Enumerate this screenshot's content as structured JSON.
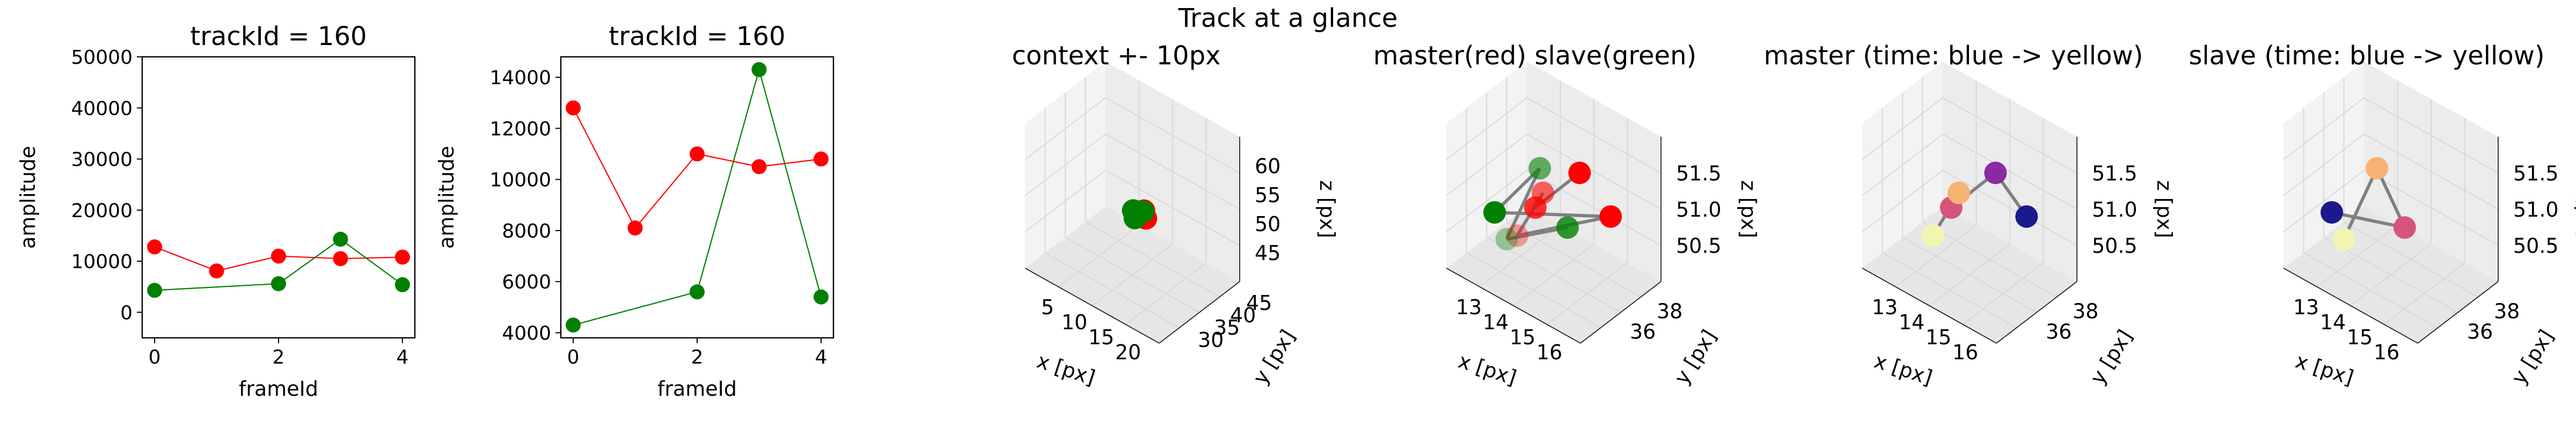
{
  "figure": {
    "suptitle": "Track at a glance"
  },
  "colors": {
    "master": "#ff0000",
    "slave": "#008000",
    "trajectory": "#808080",
    "pane": "#f2f2f2",
    "grid": "#d8d8d8"
  },
  "chart_data": [
    {
      "type": "line",
      "title": "trackId = 160",
      "xlabel": "frameId",
      "ylabel": "amplitude",
      "xlim": [
        -0.2,
        4.2
      ],
      "ylim": [
        -5000,
        50000
      ],
      "xticks": [
        0,
        2,
        4
      ],
      "yticks": [
        0,
        10000,
        20000,
        30000,
        40000,
        50000
      ],
      "series": [
        {
          "color": "#ff0000",
          "x": [
            0,
            1,
            2,
            3,
            4
          ],
          "y": [
            12800,
            8100,
            11000,
            10500,
            10800
          ]
        },
        {
          "color": "#008000",
          "x": [
            0,
            2,
            3,
            4
          ],
          "y": [
            4300,
            5600,
            14300,
            5400
          ]
        }
      ]
    },
    {
      "type": "line",
      "title": "trackId = 160",
      "xlabel": "frameId",
      "ylabel": "amplitude",
      "xlim": [
        -0.2,
        4.2
      ],
      "ylim": [
        3800,
        14800
      ],
      "xticks": [
        0,
        2,
        4
      ],
      "yticks": [
        4000,
        6000,
        8000,
        10000,
        12000,
        14000
      ],
      "series": [
        {
          "color": "#ff0000",
          "x": [
            0,
            1,
            2,
            3,
            4
          ],
          "y": [
            12800,
            8100,
            11000,
            10500,
            10800
          ]
        },
        {
          "color": "#008000",
          "x": [
            0,
            2,
            3,
            4
          ],
          "y": [
            4300,
            5600,
            14300,
            5400
          ]
        }
      ]
    },
    {
      "type": "scatter",
      "title": "context +- 10px",
      "xlabel": "x [px]",
      "ylabel": "y [px]",
      "zlabel": "z [px]",
      "xticks": [
        "5",
        "10",
        "15",
        "20"
      ],
      "yticks": [
        "30",
        "35",
        "40",
        "45"
      ],
      "zticks": [
        "45",
        "50",
        "55",
        "60"
      ],
      "points": [
        {
          "color": "#ff0000",
          "x": 15.5,
          "y": 37.2,
          "z": 50.7
        },
        {
          "color": "#ff0000",
          "x": 15.0,
          "y": 37.5,
          "z": 51.4
        },
        {
          "color": "#ff0000",
          "x": 14.5,
          "y": 37.0,
          "z": 51.0
        },
        {
          "color": "#008000",
          "x": 14.2,
          "y": 36.5,
          "z": 50.4
        },
        {
          "color": "#008000",
          "x": 13.5,
          "y": 37.2,
          "z": 50.8
        },
        {
          "color": "#008000",
          "x": 14.8,
          "y": 37.6,
          "z": 51.1
        }
      ]
    },
    {
      "type": "scatter",
      "title": "master(red) slave(green)",
      "xlabel": "x [px]",
      "ylabel": "y [px]",
      "zlabel": "z [px]",
      "xticks": [
        "13",
        "14",
        "15",
        "16"
      ],
      "yticks": [
        "36",
        "38"
      ],
      "zticks": [
        "50.5",
        "51.0",
        "51.5"
      ],
      "points": [
        {
          "color": "#ff0000",
          "alpha": 1.0,
          "x": 15.3,
          "y": 37.2,
          "z": 51.5
        },
        {
          "color": "#ff0000",
          "alpha": 0.8,
          "x": 14.3,
          "y": 36.6,
          "z": 51.0
        },
        {
          "color": "#ff0000",
          "alpha": 0.6,
          "x": 14.1,
          "y": 37.4,
          "z": 51.0
        },
        {
          "color": "#ff0000",
          "alpha": 0.35,
          "x": 13.6,
          "y": 36.9,
          "z": 50.5
        },
        {
          "color": "#ff0000",
          "alpha": 1.0,
          "x": 15.8,
          "y": 38.0,
          "z": 51.0
        },
        {
          "color": "#008000",
          "alpha": 1.0,
          "x": 13.3,
          "y": 36.2,
          "z": 50.8
        },
        {
          "color": "#008000",
          "alpha": 0.6,
          "x": 13.9,
          "y": 37.6,
          "z": 51.2
        },
        {
          "color": "#008000",
          "alpha": 0.35,
          "x": 13.5,
          "y": 36.5,
          "z": 50.5
        },
        {
          "color": "#008000",
          "alpha": 0.8,
          "x": 15.1,
          "y": 36.9,
          "z": 50.9
        }
      ]
    },
    {
      "type": "scatter",
      "title": "master (time: blue -> yellow)",
      "xlabel": "x [px]",
      "ylabel": "y [px]",
      "zlabel": "z [px]",
      "xticks": [
        "13",
        "14",
        "15",
        "16"
      ],
      "yticks": [
        "36",
        "38"
      ],
      "zticks": [
        "50.5",
        "51.0",
        "51.5"
      ],
      "points": [
        {
          "color": "#1a1a8c",
          "x": 15.8,
          "y": 38.0,
          "z": 51.0
        },
        {
          "color": "#8a2aa3",
          "x": 15.3,
          "y": 37.2,
          "z": 51.5
        },
        {
          "color": "#d6547a",
          "x": 14.3,
          "y": 36.6,
          "z": 51.0
        },
        {
          "color": "#f7b276",
          "x": 14.1,
          "y": 37.4,
          "z": 51.0
        },
        {
          "color": "#f2f5b0",
          "x": 13.6,
          "y": 36.9,
          "z": 50.5
        }
      ]
    },
    {
      "type": "scatter",
      "title": "slave (time: blue -> yellow)",
      "xlabel": "x [px]",
      "ylabel": "y [px]",
      "zlabel": "z [px]",
      "xticks": [
        "13",
        "14",
        "15",
        "16"
      ],
      "yticks": [
        "36",
        "38"
      ],
      "zticks": [
        "50.5",
        "51.0",
        "51.5"
      ],
      "points": [
        {
          "color": "#1a1a8c",
          "x": 13.3,
          "y": 36.2,
          "z": 50.8
        },
        {
          "color": "#d6547a",
          "x": 15.1,
          "y": 36.9,
          "z": 50.9
        },
        {
          "color": "#f7b276",
          "x": 13.9,
          "y": 37.6,
          "z": 51.2
        },
        {
          "color": "#f2f5b0",
          "x": 13.5,
          "y": 36.5,
          "z": 50.5
        }
      ]
    }
  ]
}
